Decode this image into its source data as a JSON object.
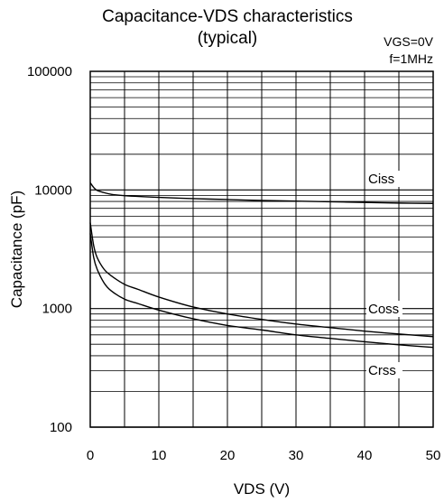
{
  "chart_data": {
    "type": "line",
    "title": "Capacitance-VDS characteristics",
    "subtitle": "(typical)",
    "conditions": [
      "VGS=0V",
      "f=1MHz"
    ],
    "xlabel": "VDS (V)",
    "ylabel": "Capacitance (pF)",
    "xlim": [
      0,
      50
    ],
    "ylim": [
      100,
      100000
    ],
    "y_scale": "log",
    "grid": true,
    "x_ticks": [
      0,
      10,
      20,
      30,
      40,
      50
    ],
    "x_tick_labels": [
      "0",
      "10",
      "20",
      "30",
      "40",
      "50"
    ],
    "y_ticks": [
      100,
      1000,
      10000,
      100000
    ],
    "y_tick_labels": [
      "100",
      "1000",
      "10000",
      "100000"
    ],
    "series": [
      {
        "name": "Ciss",
        "x": [
          0,
          0.5,
          1,
          2,
          3,
          5,
          10,
          15,
          20,
          25,
          30,
          35,
          40,
          45,
          50
        ],
        "y": [
          11500,
          10500,
          9900,
          9500,
          9200,
          8950,
          8650,
          8450,
          8300,
          8150,
          8050,
          7950,
          7850,
          7750,
          7700
        ]
      },
      {
        "name": "Coss",
        "x": [
          0,
          0.5,
          1,
          2,
          3,
          5,
          7,
          10,
          15,
          20,
          25,
          30,
          35,
          40,
          45,
          50
        ],
        "y": [
          5300,
          3400,
          2700,
          2150,
          1900,
          1600,
          1450,
          1250,
          1030,
          900,
          810,
          740,
          690,
          645,
          610,
          580
        ]
      },
      {
        "name": "Crss",
        "x": [
          0,
          0.5,
          1,
          2,
          3,
          5,
          7,
          10,
          15,
          20,
          25,
          30,
          35,
          40,
          45,
          50
        ],
        "y": [
          4300,
          2700,
          2150,
          1650,
          1420,
          1200,
          1100,
          970,
          820,
          720,
          660,
          600,
          560,
          525,
          495,
          470
        ]
      }
    ]
  }
}
